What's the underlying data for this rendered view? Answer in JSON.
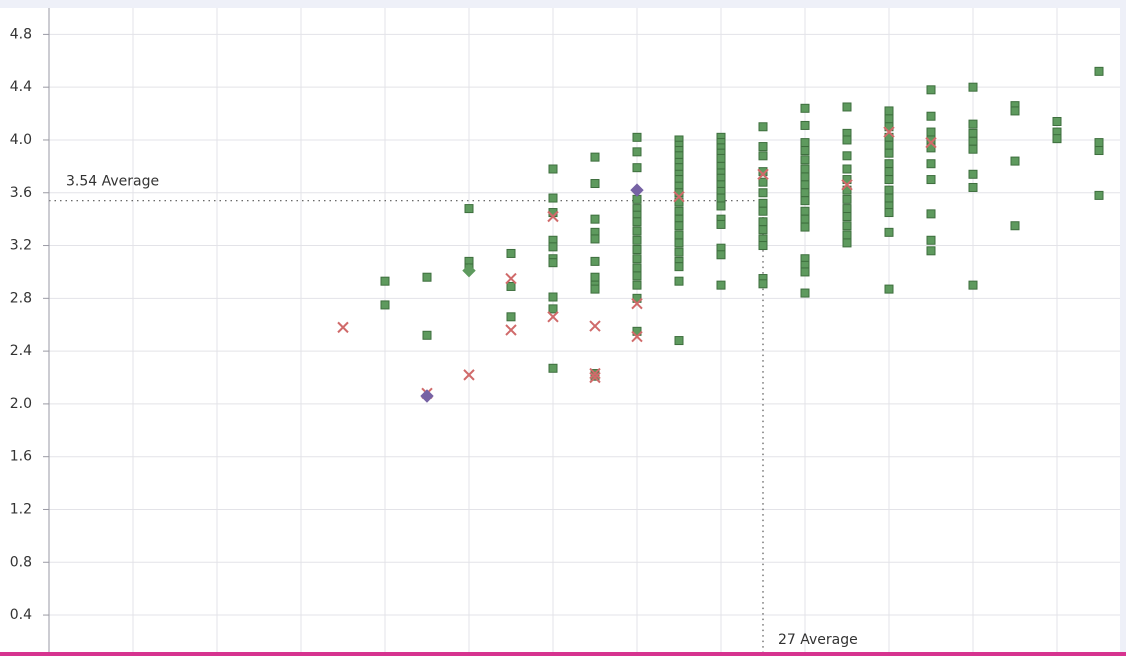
{
  "chart_data": {
    "type": "scatter",
    "xlim": [
      10,
      35.5
    ],
    "xticks": [
      10,
      12,
      14,
      16,
      18,
      20,
      22,
      24,
      26,
      28,
      30,
      32,
      34
    ],
    "ylim": [
      0.12,
      5.0
    ],
    "yticks": [
      0.4,
      0.8,
      1.2,
      1.6,
      {
        "value": 2,
        "label": "2.0"
      },
      2.4,
      2.8,
      3.2,
      3.6,
      {
        "value": 4,
        "label": "4.0"
      },
      4.4,
      4.8
    ],
    "grid": true,
    "reference_lines": [
      {
        "axis": "y",
        "value": 3.54,
        "label": "3.54 Average"
      },
      {
        "axis": "x",
        "value": 27,
        "label": "27 Average"
      }
    ],
    "series": [
      {
        "marker": "square",
        "color": "#5e9a5e",
        "x": [
          18,
          18,
          19,
          19,
          20,
          20,
          20,
          21,
          21,
          21,
          22,
          22,
          22,
          22,
          22,
          22,
          22,
          22,
          22,
          22,
          23,
          23,
          23,
          23,
          23,
          23,
          23,
          23,
          23,
          23,
          23,
          24,
          24,
          24,
          24,
          24,
          24,
          24,
          24,
          24,
          24,
          24,
          24,
          24,
          24,
          24,
          24,
          25,
          25,
          25,
          25,
          25,
          25,
          25,
          25,
          25,
          25,
          25,
          25,
          25,
          25,
          25,
          25,
          25,
          25,
          25,
          25,
          25,
          26,
          26,
          26,
          26,
          26,
          26,
          26,
          26,
          26,
          26,
          26,
          26,
          26,
          26,
          26,
          26,
          26,
          27,
          27,
          27,
          27,
          27,
          27,
          27,
          27,
          27,
          27,
          27,
          27,
          27,
          27,
          28,
          28,
          28,
          28,
          28,
          28,
          28,
          28,
          28,
          28,
          28,
          28,
          28,
          28,
          28,
          28,
          28,
          29,
          29,
          29,
          29,
          29,
          29,
          29,
          29,
          29,
          29,
          29,
          29,
          29,
          30,
          30,
          30,
          30,
          30,
          30,
          30,
          30,
          30,
          30,
          30,
          30,
          30,
          30,
          30,
          31,
          31,
          31,
          31,
          31,
          31,
          31,
          31,
          31,
          31,
          32,
          32,
          32,
          32,
          32,
          32,
          32,
          32,
          33,
          33,
          33,
          33,
          34,
          34,
          34,
          35,
          35,
          35,
          35
        ],
        "values": [
          2.93,
          2.75,
          2.96,
          2.52,
          3.48,
          3.08,
          3.03,
          3.14,
          2.89,
          2.66,
          3.78,
          3.56,
          3.45,
          3.24,
          3.19,
          3.1,
          3.07,
          2.81,
          2.72,
          2.27,
          3.87,
          3.67,
          3.4,
          3.3,
          3.25,
          3.08,
          2.96,
          2.9,
          2.87,
          2.23,
          2.21,
          4.02,
          3.91,
          3.79,
          3.55,
          3.48,
          3.43,
          3.38,
          3.31,
          3.24,
          3.17,
          3.1,
          3.03,
          2.97,
          2.9,
          2.8,
          2.55,
          4.0,
          3.96,
          3.92,
          3.88,
          3.83,
          3.79,
          3.74,
          3.7,
          3.65,
          3.6,
          3.53,
          3.46,
          3.4,
          3.35,
          3.28,
          3.22,
          3.15,
          3.08,
          3.04,
          2.93,
          2.48,
          4.02,
          3.98,
          3.94,
          3.9,
          3.86,
          3.8,
          3.75,
          3.71,
          3.66,
          3.61,
          3.56,
          3.5,
          3.4,
          3.36,
          3.18,
          3.13,
          2.9,
          4.1,
          3.95,
          3.88,
          3.76,
          3.68,
          3.6,
          3.52,
          3.46,
          3.38,
          3.32,
          3.25,
          3.2,
          2.95,
          2.91,
          4.24,
          4.11,
          3.98,
          3.92,
          3.85,
          3.78,
          3.72,
          3.66,
          3.6,
          3.54,
          3.46,
          3.4,
          3.34,
          3.1,
          3.05,
          3.0,
          2.84,
          4.25,
          4.05,
          4.0,
          3.88,
          3.78,
          3.7,
          3.62,
          3.55,
          3.48,
          3.42,
          3.35,
          3.28,
          3.22,
          4.22,
          4.16,
          4.1,
          4.02,
          3.96,
          3.9,
          3.82,
          3.76,
          3.7,
          3.62,
          3.56,
          3.5,
          3.45,
          3.3,
          2.87,
          4.38,
          4.18,
          4.06,
          4.0,
          3.94,
          3.82,
          3.7,
          3.44,
          3.24,
          3.16,
          4.4,
          4.12,
          4.05,
          3.99,
          3.93,
          3.74,
          3.64,
          2.9,
          4.26,
          4.22,
          3.84,
          3.35,
          4.14,
          4.06,
          4.01,
          4.52,
          3.98,
          3.92,
          3.58
        ]
      },
      {
        "marker": "cross",
        "color": "#d06a6a",
        "x": [
          17,
          19,
          20,
          21,
          21,
          22,
          22,
          23,
          23,
          23,
          24,
          24,
          25,
          27,
          29,
          30,
          31
        ],
        "values": [
          2.58,
          2.08,
          2.22,
          2.95,
          2.56,
          3.42,
          2.66,
          2.59,
          2.23,
          2.2,
          2.76,
          2.51,
          3.57,
          3.74,
          3.66,
          4.06,
          3.98
        ]
      },
      {
        "marker": "diamond",
        "color": "#7662a4",
        "x": [
          19,
          24
        ],
        "values": [
          2.06,
          3.62
        ]
      },
      {
        "marker": "diamond",
        "color": "#5e9a5e",
        "x": [
          20
        ],
        "values": [
          3.01
        ]
      }
    ]
  }
}
